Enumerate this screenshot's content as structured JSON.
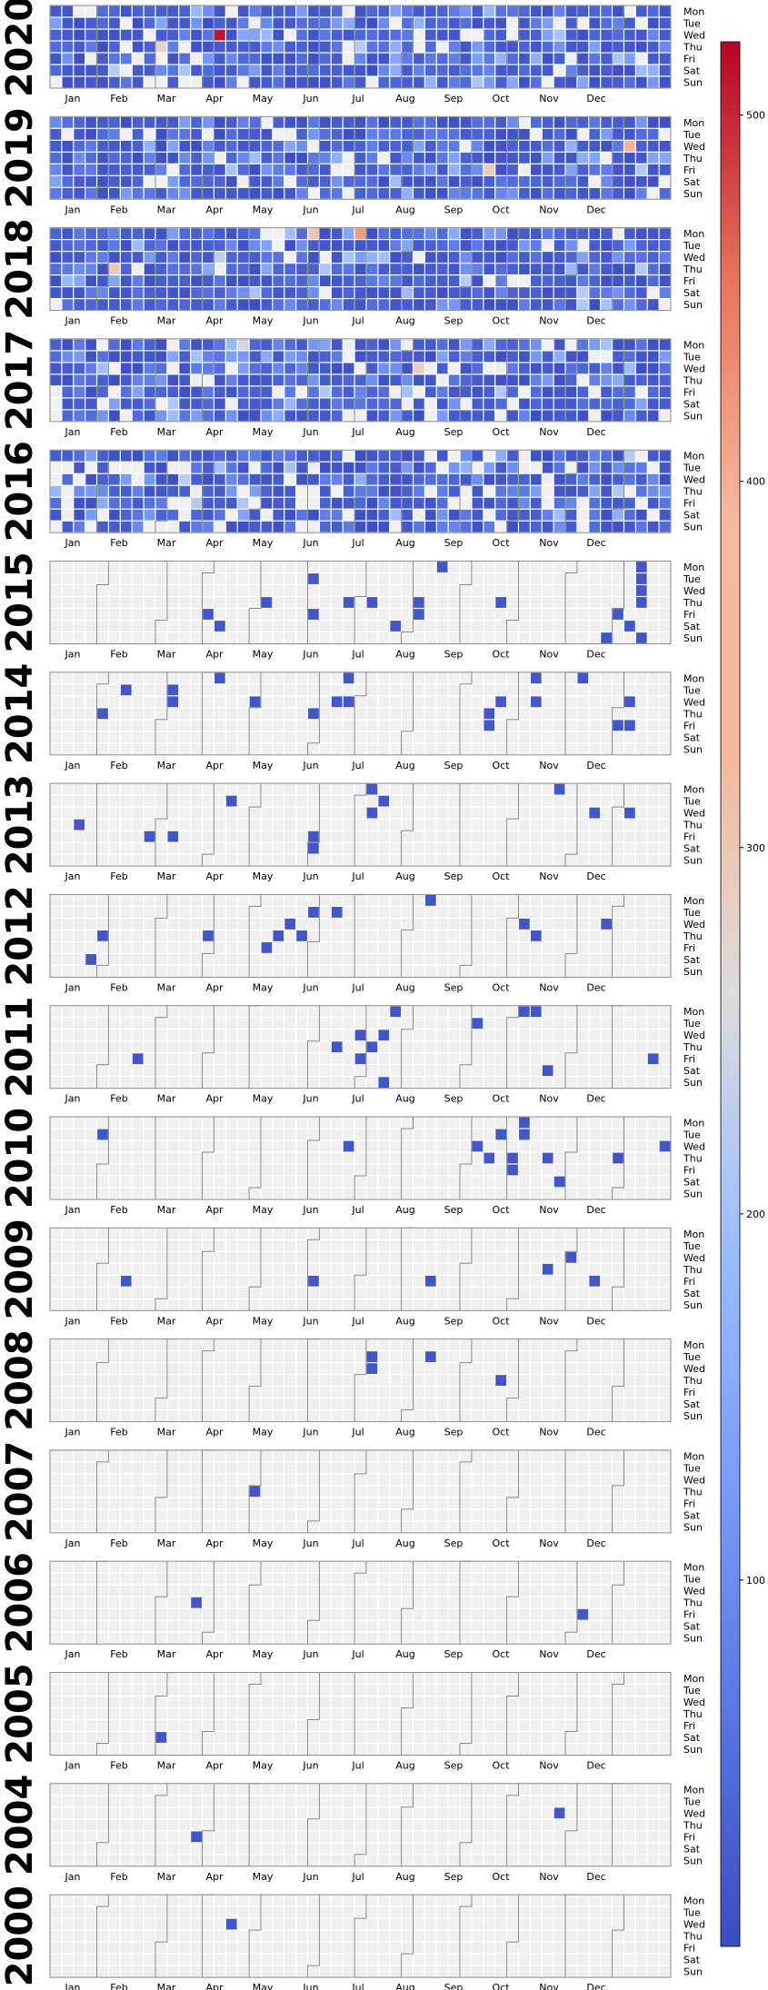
{
  "chart_data": {
    "type": "heatmap",
    "title": "",
    "day_labels": [
      "Mon",
      "Tue",
      "Wed",
      "Thu",
      "Fri",
      "Sat",
      "Sun"
    ],
    "month_labels": [
      "Jan",
      "Feb",
      "Mar",
      "Apr",
      "May",
      "Jun",
      "Jul",
      "Aug",
      "Sep",
      "Oct",
      "Nov",
      "Dec"
    ],
    "colorbar": {
      "min": 0,
      "max": 520,
      "ticks": [
        100,
        200,
        300,
        400,
        500
      ],
      "colormap": "coolwarm"
    },
    "empty_color": "#f0f0f0",
    "years": [
      {
        "year": "2020",
        "mode": "dense",
        "level": 0.9,
        "highlights": [
          {
            "week": 14,
            "day": 2,
            "value": 510
          },
          {
            "week": 9,
            "day": 3,
            "value": 275
          }
        ]
      },
      {
        "year": "2019",
        "mode": "dense",
        "level": 0.88,
        "highlights": [
          {
            "week": 49,
            "day": 2,
            "value": 330
          },
          {
            "week": 37,
            "day": 4,
            "value": 290
          }
        ]
      },
      {
        "year": "2018",
        "mode": "dense",
        "level": 0.93,
        "highlights": [
          {
            "week": 26,
            "day": 0,
            "value": 375
          },
          {
            "week": 22,
            "day": 0,
            "value": 300
          },
          {
            "week": 5,
            "day": 3,
            "value": 290
          },
          {
            "week": 14,
            "day": 2,
            "value": 230
          }
        ]
      },
      {
        "year": "2017",
        "mode": "dense",
        "level": 0.88,
        "highlights": [
          {
            "week": 31,
            "day": 2,
            "value": 280
          },
          {
            "week": 16,
            "day": 0,
            "value": 250
          }
        ]
      },
      {
        "year": "2016",
        "mode": "dense",
        "level": 0.82,
        "highlights": []
      },
      {
        "year": "2015",
        "mode": "sparse",
        "cells": [
          [
            33,
            0
          ],
          [
            22,
            1
          ],
          [
            18,
            3
          ],
          [
            25,
            3
          ],
          [
            27,
            3
          ],
          [
            31,
            3
          ],
          [
            38,
            3
          ],
          [
            13,
            4
          ],
          [
            22,
            4
          ],
          [
            31,
            4
          ],
          [
            48,
            4
          ],
          [
            14,
            5
          ],
          [
            29,
            5
          ],
          [
            49,
            5
          ],
          [
            47,
            6
          ],
          [
            50,
            6
          ],
          [
            50,
            0
          ],
          [
            50,
            1
          ],
          [
            50,
            2
          ],
          [
            50,
            3
          ]
        ]
      },
      {
        "year": "2014",
        "mode": "sparse",
        "cells": [
          [
            14,
            0
          ],
          [
            25,
            0
          ],
          [
            41,
            0
          ],
          [
            45,
            0
          ],
          [
            6,
            1
          ],
          [
            10,
            1
          ],
          [
            10,
            2
          ],
          [
            17,
            2
          ],
          [
            24,
            2
          ],
          [
            25,
            2
          ],
          [
            38,
            2
          ],
          [
            41,
            2
          ],
          [
            49,
            2
          ],
          [
            4,
            3
          ],
          [
            22,
            3
          ],
          [
            37,
            3
          ],
          [
            37,
            4
          ],
          [
            48,
            4
          ],
          [
            49,
            4
          ]
        ]
      },
      {
        "year": "2013",
        "mode": "sparse",
        "cells": [
          [
            43,
            0
          ],
          [
            27,
            0
          ],
          [
            15,
            1
          ],
          [
            28,
            1
          ],
          [
            46,
            2
          ],
          [
            49,
            2
          ],
          [
            27,
            2
          ],
          [
            2,
            3
          ],
          [
            8,
            4
          ],
          [
            10,
            4
          ],
          [
            22,
            4
          ],
          [
            22,
            5
          ]
        ]
      },
      {
        "year": "2012",
        "mode": "sparse",
        "cells": [
          [
            32,
            0
          ],
          [
            22,
            1
          ],
          [
            24,
            1
          ],
          [
            20,
            2
          ],
          [
            40,
            2
          ],
          [
            47,
            2
          ],
          [
            4,
            3
          ],
          [
            13,
            3
          ],
          [
            19,
            3
          ],
          [
            21,
            3
          ],
          [
            41,
            3
          ],
          [
            18,
            4
          ],
          [
            3,
            5
          ]
        ]
      },
      {
        "year": "2011",
        "mode": "sparse",
        "cells": [
          [
            29,
            0
          ],
          [
            40,
            0
          ],
          [
            41,
            0
          ],
          [
            36,
            1
          ],
          [
            26,
            2
          ],
          [
            28,
            2
          ],
          [
            24,
            3
          ],
          [
            27,
            3
          ],
          [
            26,
            4
          ],
          [
            51,
            4
          ],
          [
            7,
            4
          ],
          [
            42,
            5
          ],
          [
            28,
            6
          ]
        ]
      },
      {
        "year": "2010",
        "mode": "sparse",
        "cells": [
          [
            40,
            0
          ],
          [
            4,
            1
          ],
          [
            38,
            1
          ],
          [
            40,
            1
          ],
          [
            25,
            2
          ],
          [
            36,
            2
          ],
          [
            52,
            2
          ],
          [
            37,
            3
          ],
          [
            39,
            3
          ],
          [
            42,
            3
          ],
          [
            48,
            3
          ],
          [
            39,
            4
          ],
          [
            43,
            5
          ]
        ]
      },
      {
        "year": "2009",
        "mode": "sparse",
        "cells": [
          [
            44,
            2
          ],
          [
            42,
            3
          ],
          [
            6,
            4
          ],
          [
            22,
            4
          ],
          [
            32,
            4
          ],
          [
            46,
            4
          ]
        ]
      },
      {
        "year": "2008",
        "mode": "sparse",
        "cells": [
          [
            27,
            1
          ],
          [
            27,
            2
          ],
          [
            32,
            1
          ],
          [
            38,
            3
          ]
        ]
      },
      {
        "year": "2007",
        "mode": "sparse",
        "cells": [
          [
            17,
            3
          ]
        ]
      },
      {
        "year": "2006",
        "mode": "sparse",
        "cells": [
          [
            12,
            3
          ],
          [
            45,
            4
          ]
        ]
      },
      {
        "year": "2005",
        "mode": "sparse",
        "cells": [
          [
            9,
            5
          ]
        ]
      },
      {
        "year": "2004",
        "mode": "sparse",
        "cells": [
          [
            43,
            2
          ],
          [
            12,
            4
          ]
        ]
      },
      {
        "year": "2000",
        "mode": "sparse",
        "cells": [
          [
            15,
            2
          ]
        ]
      }
    ]
  }
}
